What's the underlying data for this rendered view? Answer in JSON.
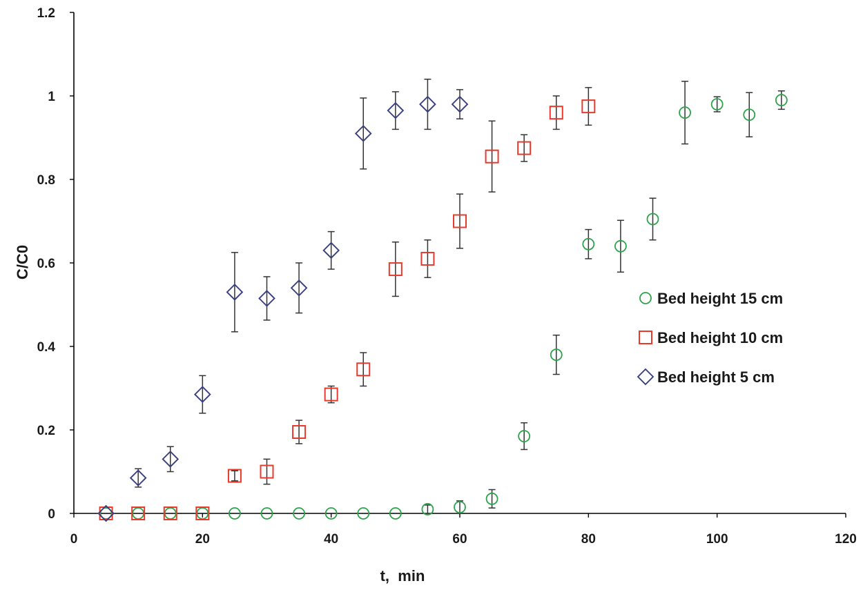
{
  "chart_data": {
    "type": "scatter",
    "xlabel": "t,  min",
    "ylabel": "C/C0",
    "xlim": [
      0,
      120
    ],
    "ylim": [
      0,
      1.2
    ],
    "xticks": [
      0,
      20,
      40,
      60,
      80,
      100,
      120
    ],
    "yticks": [
      0,
      0.2,
      0.4,
      0.6,
      0.8,
      1,
      1.2
    ],
    "xtick_labels": [
      "0",
      "20",
      "40",
      "60",
      "80",
      "100",
      "120"
    ],
    "ytick_labels": [
      "0",
      "0.2",
      "0.4",
      "0.6",
      "0.8",
      "1",
      "1.2"
    ],
    "grid": false,
    "legend_position": "right",
    "series": [
      {
        "name": "Bed height 15 cm",
        "marker": "circle",
        "color": "#2ca24a",
        "x": [
          5,
          10,
          15,
          20,
          25,
          30,
          35,
          40,
          45,
          50,
          55,
          60,
          65,
          70,
          75,
          80,
          85,
          90,
          95,
          100,
          105,
          110
        ],
        "y": [
          0,
          0,
          0,
          0,
          0,
          0,
          0,
          0,
          0,
          0,
          0.01,
          0.015,
          0.035,
          0.185,
          0.38,
          0.645,
          0.64,
          0.705,
          0.96,
          0.98,
          0.955,
          0.99
        ],
        "err": [
          0,
          0,
          0,
          0,
          0,
          0,
          0,
          0,
          0,
          0,
          0.01,
          0.015,
          0.022,
          0.032,
          0.047,
          0.035,
          0.062,
          0.05,
          0.075,
          0.018,
          0.053,
          0.022
        ]
      },
      {
        "name": "Bed height 10 cm",
        "marker": "square",
        "color": "#e8392b",
        "x": [
          5,
          10,
          15,
          20,
          25,
          30,
          35,
          40,
          45,
          50,
          55,
          60,
          65,
          70,
          75,
          80
        ],
        "y": [
          0,
          0,
          0,
          0,
          0.09,
          0.1,
          0.195,
          0.285,
          0.345,
          0.585,
          0.61,
          0.7,
          0.855,
          0.875,
          0.96,
          0.975
        ],
        "err": [
          0,
          0,
          0,
          0,
          0.012,
          0.03,
          0.028,
          0.02,
          0.04,
          0.065,
          0.045,
          0.065,
          0.085,
          0.032,
          0.04,
          0.045
        ]
      },
      {
        "name": "Bed height  5 cm",
        "marker": "diamond",
        "color": "#3a3f7e",
        "x": [
          5,
          10,
          15,
          20,
          25,
          30,
          35,
          40,
          45,
          50,
          55,
          60
        ],
        "y": [
          0,
          0.085,
          0.13,
          0.285,
          0.53,
          0.515,
          0.54,
          0.63,
          0.91,
          0.965,
          0.98,
          0.98
        ],
        "err": [
          0,
          0.022,
          0.03,
          0.045,
          0.095,
          0.052,
          0.06,
          0.045,
          0.085,
          0.045,
          0.06,
          0.035
        ]
      }
    ]
  }
}
